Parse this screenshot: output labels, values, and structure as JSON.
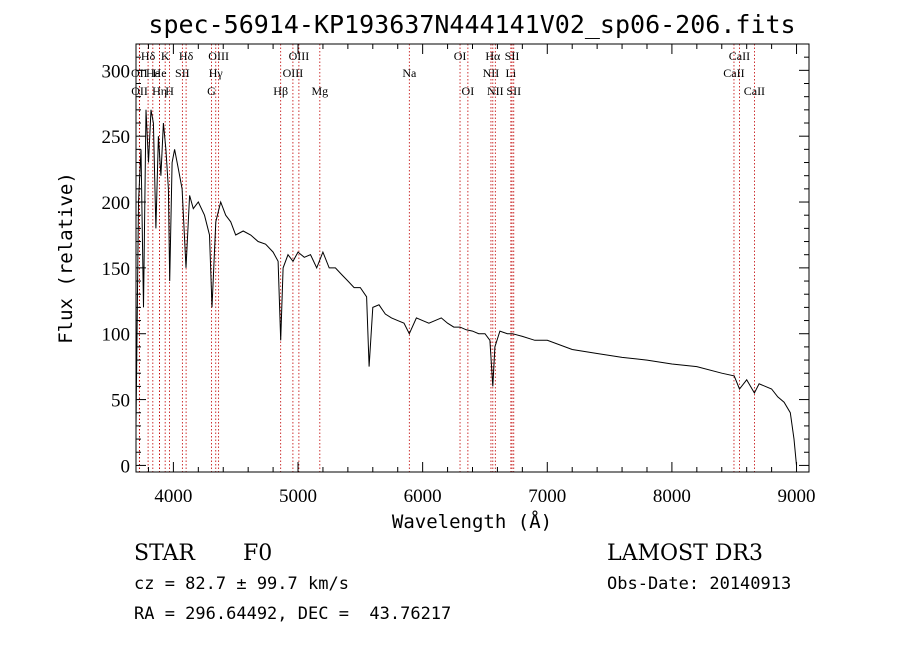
{
  "chart_data": {
    "type": "line",
    "title": "spec-56914-KP193637N444141V02_sp06-206.fits",
    "xlabel": "Wavelength (Å)",
    "ylabel": "Flux (relative)",
    "xlim": [
      3700,
      9100
    ],
    "ylim": [
      -5,
      320
    ],
    "xticks": [
      4000,
      5000,
      6000,
      7000,
      8000,
      9000
    ],
    "yticks": [
      0,
      50,
      100,
      150,
      200,
      250,
      300
    ],
    "series": [
      {
        "name": "spectrum",
        "x": [
          3700,
          3720,
          3740,
          3760,
          3780,
          3800,
          3820,
          3840,
          3860,
          3880,
          3900,
          3920,
          3940,
          3960,
          3970,
          3990,
          4010,
          4040,
          4070,
          4101,
          4130,
          4160,
          4200,
          4250,
          4290,
          4310,
          4340,
          4380,
          4420,
          4460,
          4500,
          4560,
          4620,
          4680,
          4740,
          4800,
          4840,
          4861,
          4880,
          4920,
          4960,
          5000,
          5050,
          5100,
          5150,
          5200,
          5250,
          5300,
          5350,
          5400,
          5450,
          5500,
          5550,
          5570,
          5600,
          5650,
          5700,
          5750,
          5800,
          5850,
          5893,
          5950,
          6000,
          6050,
          6100,
          6150,
          6200,
          6250,
          6300,
          6350,
          6400,
          6450,
          6500,
          6540,
          6563,
          6580,
          6620,
          6680,
          6720,
          6800,
          6900,
          7000,
          7200,
          7400,
          7600,
          7800,
          8000,
          8200,
          8400,
          8500,
          8542,
          8600,
          8662,
          8700,
          8800,
          8850,
          8900,
          8950,
          8980,
          9000
        ],
        "values": [
          30,
          200,
          240,
          120,
          270,
          230,
          270,
          260,
          180,
          250,
          220,
          260,
          240,
          210,
          140,
          230,
          240,
          225,
          210,
          150,
          205,
          195,
          200,
          190,
          175,
          120,
          185,
          200,
          190,
          185,
          175,
          178,
          175,
          170,
          168,
          162,
          155,
          95,
          150,
          160,
          155,
          162,
          158,
          160,
          150,
          162,
          150,
          150,
          145,
          140,
          135,
          135,
          128,
          75,
          120,
          122,
          115,
          112,
          110,
          108,
          100,
          112,
          110,
          108,
          110,
          112,
          108,
          105,
          105,
          103,
          102,
          100,
          100,
          95,
          60,
          90,
          102,
          100,
          100,
          98,
          95,
          95,
          88,
          85,
          82,
          80,
          77,
          75,
          70,
          68,
          58,
          65,
          55,
          62,
          58,
          52,
          48,
          40,
          20,
          0
        ]
      }
    ],
    "lines": [
      {
        "label": "Hδ",
        "x": 3797,
        "row": 1
      },
      {
        "label": "OII",
        "x": 3727,
        "row": 2
      },
      {
        "label": "OII",
        "x": 3729,
        "row": 3
      },
      {
        "label": "Hε",
        "x": 3835,
        "row": 2
      },
      {
        "label": "Hη",
        "x": 3889,
        "row": 3
      },
      {
        "label": "K",
        "x": 3934,
        "row": 1
      },
      {
        "label": "He",
        "x": 3889,
        "row": 2
      },
      {
        "label": "H",
        "x": 3969,
        "row": 3
      },
      {
        "label": "SII",
        "x": 4072,
        "row": 2
      },
      {
        "label": "Hδ",
        "x": 4102,
        "row": 1
      },
      {
        "label": "OIII",
        "x": 4363,
        "row": 1
      },
      {
        "label": "Hγ",
        "x": 4340,
        "row": 2
      },
      {
        "label": "G",
        "x": 4305,
        "row": 3
      },
      {
        "label": "Hβ",
        "x": 4861,
        "row": 3
      },
      {
        "label": "OIII",
        "x": 5007,
        "row": 1
      },
      {
        "label": "OIII",
        "x": 4959,
        "row": 2
      },
      {
        "label": "Mg",
        "x": 5175,
        "row": 3
      },
      {
        "label": "Na",
        "x": 5893,
        "row": 2
      },
      {
        "label": "OI",
        "x": 6300,
        "row": 1
      },
      {
        "label": "OI",
        "x": 6363,
        "row": 3
      },
      {
        "label": "Hα",
        "x": 6563,
        "row": 1
      },
      {
        "label": "SII",
        "x": 6717,
        "row": 1
      },
      {
        "label": "NII",
        "x": 6548,
        "row": 2
      },
      {
        "label": "Li",
        "x": 6708,
        "row": 2
      },
      {
        "label": "NII",
        "x": 6583,
        "row": 3
      },
      {
        "label": "SII",
        "x": 6731,
        "row": 3
      },
      {
        "label": "CaII",
        "x": 8542,
        "row": 1
      },
      {
        "label": "CaII",
        "x": 8498,
        "row": 2
      },
      {
        "label": "CaII",
        "x": 8662,
        "row": 3
      }
    ]
  },
  "info": {
    "object_class": "STAR",
    "subclass": "F0",
    "survey": "LAMOST DR3",
    "cz": "cz = 82.7 ± 99.7 km/s",
    "obs_date": "Obs-Date: 20140913",
    "coords": "RA = 296.64492, DEC =  43.76217"
  },
  "colors": {
    "spectrum": "#000000",
    "line_marker": "#c00000",
    "axes": "#000000"
  }
}
